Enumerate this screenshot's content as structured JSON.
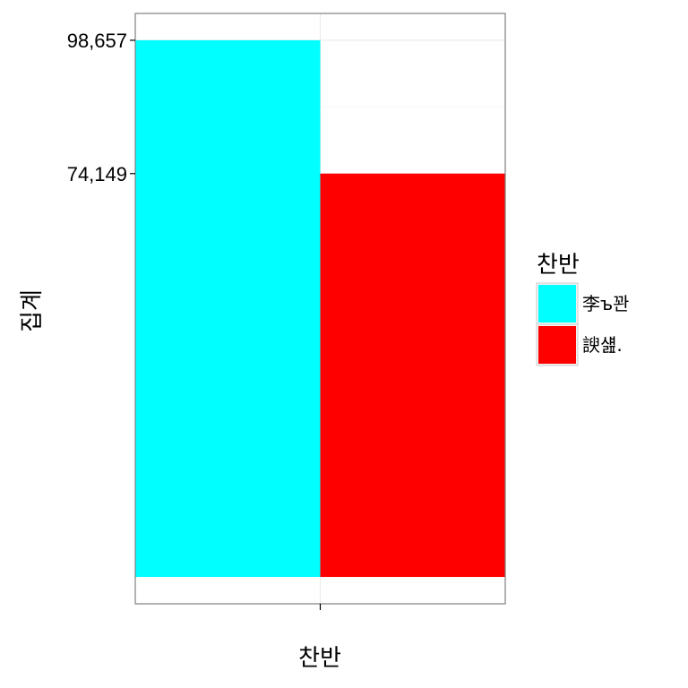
{
  "chart_data": {
    "type": "bar",
    "categories": [
      ""
    ],
    "series": [
      {
        "name": "李ъ꽌",
        "values": [
          98657
        ],
        "color": "#00FFFF"
      },
      {
        "name": "諛섎.",
        "values": [
          74149
        ],
        "color": "#FF0000"
      }
    ],
    "ylabel": "집계",
    "xlabel": "찬반",
    "ytick_labels": [
      "74,149",
      "98,657"
    ],
    "ytick_values": [
      74149,
      98657
    ],
    "ylim": [
      -4933,
      103590
    ],
    "grid": true,
    "legend": {
      "title": "찬반",
      "position": "right"
    }
  }
}
